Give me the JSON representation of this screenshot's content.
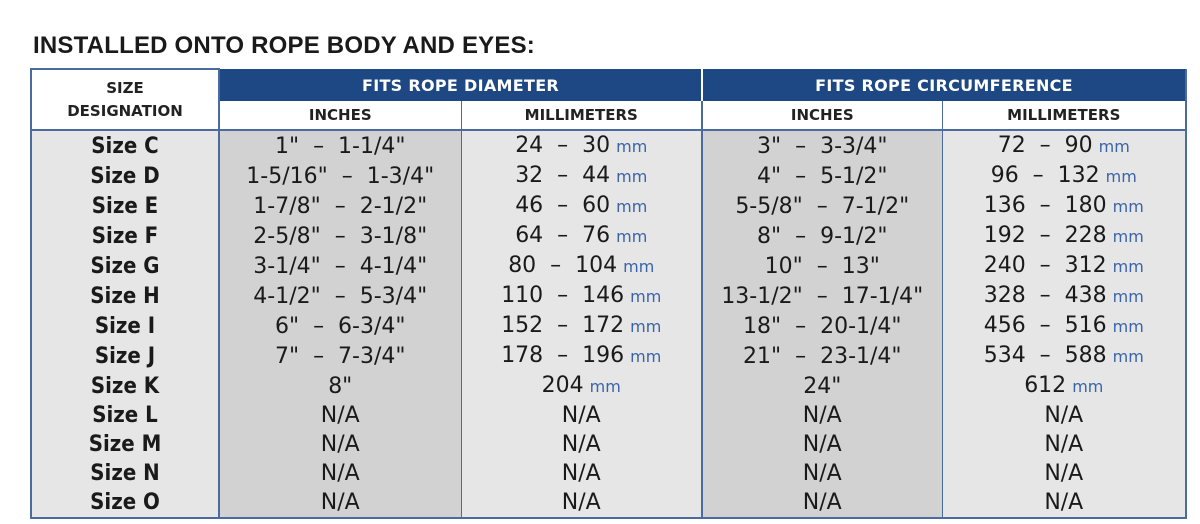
{
  "title": "INSTALLED ONTO ROPE BODY AND EYES:",
  "header": {
    "size_line1": "SIZE",
    "size_line2": "DESIGNATION",
    "group_diameter": "FITS ROPE DIAMETER",
    "group_circumference": "FITS ROPE CIRCUMFERENCE",
    "col_inches": "INCHES",
    "col_millimeters": "MILLIMETERS",
    "col_inches_2": "INCHES",
    "col_millimeters_2": "MILLIMETERS"
  },
  "unit": "mm",
  "rows": [
    {
      "size": "Size C",
      "dia_in": "1\"  –  1-1/4\"",
      "dia_mm": "24  –  30",
      "circ_in": "3\"  –  3-3/4\"",
      "circ_mm": "72  –  90"
    },
    {
      "size": "Size D",
      "dia_in": "1-5/16\"  –  1-3/4\"",
      "dia_mm": "32  –  44",
      "circ_in": "4\"  –  5-1/2\"",
      "circ_mm": "96  –  132"
    },
    {
      "size": "Size E",
      "dia_in": "1-7/8\"  –  2-1/2\"",
      "dia_mm": "46  –  60",
      "circ_in": "5-5/8\"  –  7-1/2\"",
      "circ_mm": "136  –  180"
    },
    {
      "size": "Size F",
      "dia_in": "2-5/8\"  –  3-1/8\"",
      "dia_mm": "64  –  76",
      "circ_in": "8\"  –  9-1/2\"",
      "circ_mm": "192  –  228"
    },
    {
      "size": "Size G",
      "dia_in": "3-1/4\"  –  4-1/4\"",
      "dia_mm": "80  –  104",
      "circ_in": "10\"  –  13\"",
      "circ_mm": "240  –  312"
    },
    {
      "size": "Size H",
      "dia_in": "4-1/2\"  –  5-3/4\"",
      "dia_mm": "110  –  146",
      "circ_in": "13-1/2\"  –  17-1/4\"",
      "circ_mm": "328  –  438"
    },
    {
      "size": "Size I",
      "dia_in": "6\"  –  6-3/4\"",
      "dia_mm": "152  –  172",
      "circ_in": "18\"  –  20-1/4\"",
      "circ_mm": "456  –  516"
    },
    {
      "size": "Size J",
      "dia_in": "7\"  –  7-3/4\"",
      "dia_mm": "178  –  196",
      "circ_in": "21\"  –  23-1/4\"",
      "circ_mm": "534  –  588"
    },
    {
      "size": "Size K",
      "dia_in": "8\"",
      "dia_mm": "204",
      "circ_in": "24\"",
      "circ_mm": "612"
    },
    {
      "size": "Size L",
      "dia_in": "N/A",
      "dia_mm": "N/A",
      "circ_in": "N/A",
      "circ_mm": "N/A"
    },
    {
      "size": "Size M",
      "dia_in": "N/A",
      "dia_mm": "N/A",
      "circ_in": "N/A",
      "circ_mm": "N/A"
    },
    {
      "size": "Size N",
      "dia_in": "N/A",
      "dia_mm": "N/A",
      "circ_in": "N/A",
      "circ_mm": "N/A"
    },
    {
      "size": "Size O",
      "dia_in": "N/A",
      "dia_mm": "N/A",
      "circ_in": "N/A",
      "circ_mm": "N/A"
    }
  ],
  "colors": {
    "header_blue": "#1d4884",
    "border_blue": "#4a6aa0",
    "unit_blue": "#3a64a8",
    "cell_dark": "#d2d2d2",
    "cell_light": "#e6e6e6"
  }
}
